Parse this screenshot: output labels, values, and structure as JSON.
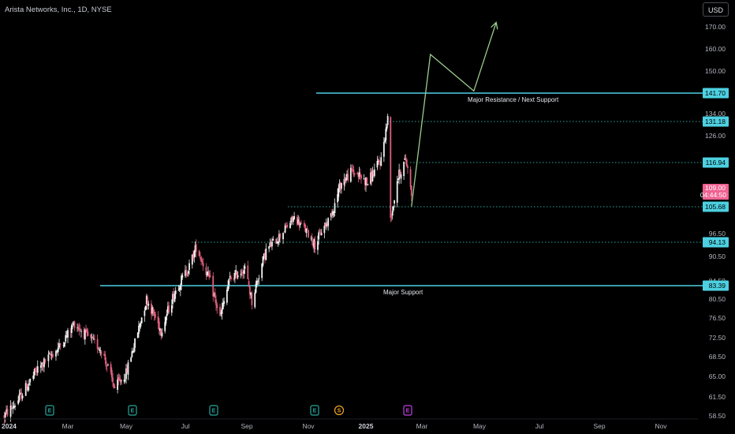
{
  "symbol": {
    "title": "Arista Networks, Inc., 1D, NYSE"
  },
  "currency_button": {
    "label": "USD"
  },
  "colors": {
    "background": "#000000",
    "up_candle": "#f2f2f2",
    "down_candle": "#e0607e",
    "support_resistance": "#4dd0e1",
    "projection": "#9ccc8e",
    "current_price_tag": "#f06292",
    "earnings_event": "#26a69a",
    "dividend_event": "#f5a623",
    "future_event": "#c040e0"
  },
  "chart_data": {
    "type": "candlestick",
    "title": "Arista Networks, Inc., 1D, NYSE",
    "y_axis": {
      "ylim": [
        57,
        175
      ],
      "ticks": [
        "170.00",
        "160.00",
        "150.00",
        "134.00",
        "126.00",
        "96.50",
        "90.50",
        "84.50",
        "80.50",
        "76.50",
        "72.50",
        "68.50",
        "65.00",
        "61.50",
        "58.50"
      ]
    },
    "x_axis": {
      "ticks": [
        {
          "label": "2024",
          "bold": true
        },
        {
          "label": "Mar",
          "bold": false
        },
        {
          "label": "May",
          "bold": false
        },
        {
          "label": "Jul",
          "bold": false
        },
        {
          "label": "Sep",
          "bold": false
        },
        {
          "label": "Nov",
          "bold": false
        },
        {
          "label": "2025",
          "bold": true
        },
        {
          "label": "Mar",
          "bold": false
        },
        {
          "label": "May",
          "bold": false
        },
        {
          "label": "Jul",
          "bold": false
        },
        {
          "label": "Sep",
          "bold": false
        },
        {
          "label": "Nov",
          "bold": false
        }
      ]
    },
    "horizontal_levels": [
      {
        "value": 141.7,
        "label": "141.70",
        "style": "solid",
        "annotation": "Major Resistance / Next Support"
      },
      {
        "value": 131.18,
        "label": "131.18",
        "style": "dotted",
        "annotation": ""
      },
      {
        "value": 116.94,
        "label": "116.94",
        "style": "dotted",
        "annotation": ""
      },
      {
        "value": 105.68,
        "label": "105.68",
        "style": "dotted",
        "annotation": ""
      },
      {
        "value": 94.13,
        "label": "94.13",
        "style": "dotted",
        "annotation": ""
      },
      {
        "value": 83.39,
        "label": "83.39",
        "style": "solid",
        "annotation": "Major Support"
      }
    ],
    "current_price": {
      "value": 109.0,
      "label": "109.00",
      "countdown": "04:44:50"
    },
    "projection_path": [
      {
        "date": "2025-02-18",
        "value": 105.7
      },
      {
        "date": "2025-03-10",
        "value": 157.5
      },
      {
        "date": "2025-04-25",
        "value": 142.5
      },
      {
        "date": "2025-05-18",
        "value": 172.0
      }
    ],
    "events": [
      {
        "symbol": "E",
        "kind": "earnings"
      },
      {
        "symbol": "E",
        "kind": "earnings"
      },
      {
        "symbol": "E",
        "kind": "earnings"
      },
      {
        "symbol": "E",
        "kind": "earnings"
      },
      {
        "symbol": "S",
        "kind": "dividend"
      },
      {
        "symbol": "E",
        "kind": "future"
      }
    ],
    "price_path_anchors": [
      {
        "date": "2024-01-02",
        "value": 58.5
      },
      {
        "date": "2024-01-15",
        "value": 61.0
      },
      {
        "date": "2024-02-01",
        "value": 66.0
      },
      {
        "date": "2024-02-20",
        "value": 70.0
      },
      {
        "date": "2024-03-08",
        "value": 75.5
      },
      {
        "date": "2024-03-20",
        "value": 73.0
      },
      {
        "date": "2024-04-05",
        "value": 70.0
      },
      {
        "date": "2024-04-19",
        "value": 63.0
      },
      {
        "date": "2024-05-01",
        "value": 65.5
      },
      {
        "date": "2024-05-10",
        "value": 71.5
      },
      {
        "date": "2024-05-22",
        "value": 80.5
      },
      {
        "date": "2024-06-06",
        "value": 74.0
      },
      {
        "date": "2024-06-20",
        "value": 82.0
      },
      {
        "date": "2024-07-05",
        "value": 88.0
      },
      {
        "date": "2024-07-12",
        "value": 93.0
      },
      {
        "date": "2024-07-25",
        "value": 85.0
      },
      {
        "date": "2024-08-05",
        "value": 76.5
      },
      {
        "date": "2024-08-15",
        "value": 85.0
      },
      {
        "date": "2024-08-30",
        "value": 87.5
      },
      {
        "date": "2024-09-06",
        "value": 80.0
      },
      {
        "date": "2024-09-20",
        "value": 92.0
      },
      {
        "date": "2024-10-04",
        "value": 96.0
      },
      {
        "date": "2024-10-18",
        "value": 102.0
      },
      {
        "date": "2024-10-31",
        "value": 97.0
      },
      {
        "date": "2024-11-08",
        "value": 93.5
      },
      {
        "date": "2024-11-22",
        "value": 101.0
      },
      {
        "date": "2024-12-06",
        "value": 111.0
      },
      {
        "date": "2024-12-18",
        "value": 114.5
      },
      {
        "date": "2025-01-03",
        "value": 111.0
      },
      {
        "date": "2025-01-17",
        "value": 118.0
      },
      {
        "date": "2025-01-24",
        "value": 132.0
      },
      {
        "date": "2025-01-27",
        "value": 102.0
      },
      {
        "date": "2025-02-03",
        "value": 112.0
      },
      {
        "date": "2025-02-12",
        "value": 118.0
      },
      {
        "date": "2025-02-18",
        "value": 109.0
      }
    ]
  }
}
